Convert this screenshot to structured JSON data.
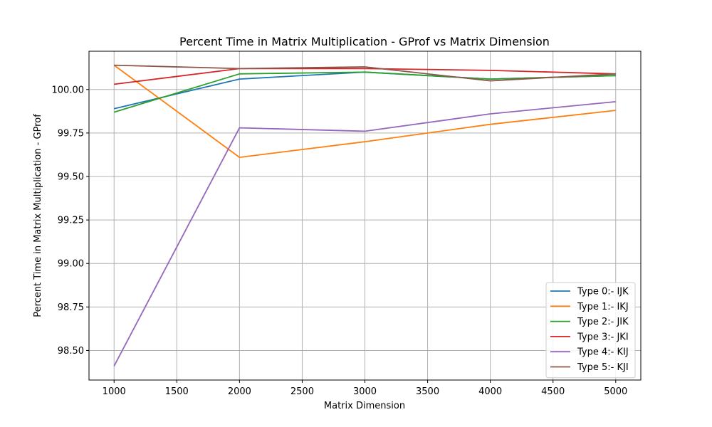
{
  "chart_data": {
    "type": "line",
    "title": "Percent Time in Matrix Multiplication - GProf vs Matrix Dimension",
    "xlabel": "Matrix Dimension",
    "ylabel": "Percent Time in Matrix Multiplication - GProf",
    "x": [
      1000,
      2000,
      3000,
      4000,
      5000
    ],
    "xlim": [
      800,
      5200
    ],
    "ylim": [
      98.33,
      100.22
    ],
    "xticks": [
      "1000",
      "1500",
      "2000",
      "2500",
      "3000",
      "3500",
      "4000",
      "4500",
      "5000"
    ],
    "yticks": [
      "98.50",
      "98.75",
      "99.00",
      "99.25",
      "99.50",
      "99.75",
      "100.00"
    ],
    "grid": true,
    "legend_position": "lower-right",
    "series": [
      {
        "name": "Type 0:- IJK",
        "color": "#1f77b4",
        "values": [
          99.89,
          100.06,
          100.1,
          100.06,
          100.08
        ]
      },
      {
        "name": "Type 1:- IKJ",
        "color": "#ff7f0e",
        "values": [
          100.14,
          99.61,
          99.7,
          99.8,
          99.88
        ]
      },
      {
        "name": "Type 2:- JIK",
        "color": "#2ca02c",
        "values": [
          99.87,
          100.09,
          100.1,
          100.06,
          100.08
        ]
      },
      {
        "name": "Type 3:- JKI",
        "color": "#d62728",
        "values": [
          100.03,
          100.12,
          100.12,
          100.11,
          100.09
        ]
      },
      {
        "name": "Type 4:- KIJ",
        "color": "#9467bd",
        "values": [
          98.41,
          99.78,
          99.76,
          99.86,
          99.93
        ]
      },
      {
        "name": "Type 5:- KJI",
        "color": "#8c564b",
        "values": [
          100.14,
          100.12,
          100.13,
          100.05,
          100.09
        ]
      }
    ]
  }
}
